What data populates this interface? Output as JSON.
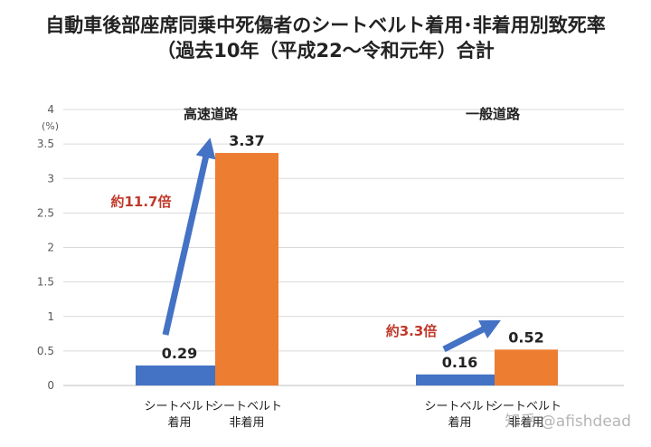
{
  "title_line1": "自動車後部座席同乗中死傷者のシートベルト着用･非着用別致死率",
  "title_line2": "（過去10年（平成22～令和元年）合計",
  "watermark": "知乎 @afishdead",
  "colors": {
    "belted": "#4472c4",
    "unbelted": "#ed7d31",
    "ratio_text": "#c0392b",
    "arrow": "#4472c4",
    "grid": "#d9d9d9"
  },
  "chart_data": {
    "type": "bar",
    "ylabel": "(%)",
    "ylim": [
      0,
      4
    ],
    "yticks": [
      "0",
      "0.5",
      "1",
      "1.5",
      "2",
      "2.5",
      "3",
      "3.5",
      "4"
    ],
    "grid": true,
    "groups": [
      {
        "label": "高速道路",
        "ratio_label": "約11.7倍",
        "bars": [
          {
            "label": [
              "シートベルト",
              "着用"
            ],
            "value": 0.29,
            "value_label": "0.29"
          },
          {
            "label": [
              "シートベルト",
              "非着用"
            ],
            "value": 3.37,
            "value_label": "3.37"
          }
        ]
      },
      {
        "label": "一般道路",
        "ratio_label": "約3.3倍",
        "bars": [
          {
            "label": [
              "シートベルト",
              "着用"
            ],
            "value": 0.16,
            "value_label": "0.16"
          },
          {
            "label": [
              "シートベルト",
              "非着用"
            ],
            "value": 0.52,
            "value_label": "0.52"
          }
        ]
      }
    ]
  }
}
